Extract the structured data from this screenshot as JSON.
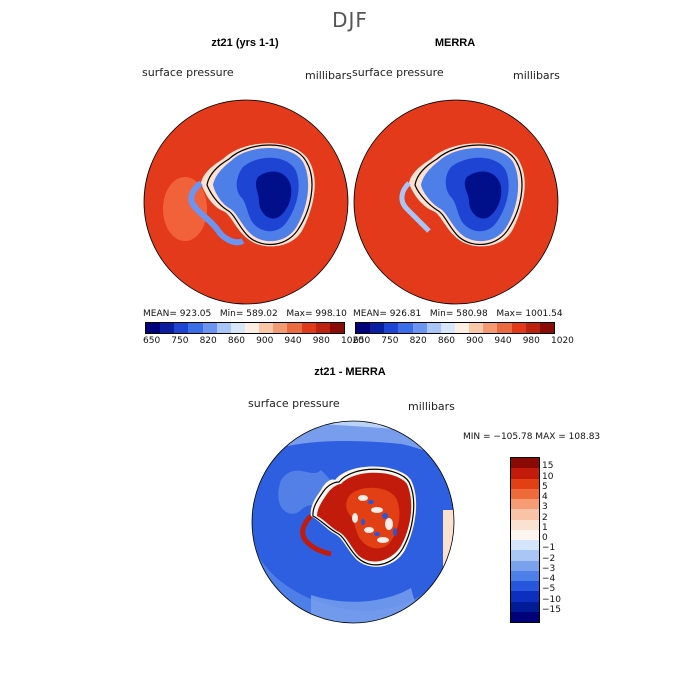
{
  "page": {
    "season": "DJF"
  },
  "colors": {
    "abs_levels": [
      "#00007a",
      "#0a1fa0",
      "#1e44d4",
      "#3b6de8",
      "#6b95f0",
      "#a8c5f5",
      "#d8e6fa",
      "#fdeee3",
      "#f7c7a8",
      "#f29a72",
      "#ea6a42",
      "#e03a1a",
      "#bd220f",
      "#8a0b05"
    ],
    "diff_levels": [
      "#8a0b05",
      "#c21b0c",
      "#e23f14",
      "#ef6a3a",
      "#f59c74",
      "#f8c3a6",
      "#fbe1d2",
      "#fdf6f0",
      "#d5e5fb",
      "#a9c6f4",
      "#7aa1ee",
      "#4e7ee8",
      "#2656dc",
      "#0c2fc0",
      "#001c96",
      "#00007a"
    ],
    "ocean_red": "#e33a1c",
    "ocean_blue": "#2d5fe0",
    "land_blue": "#1436c8",
    "land_deep": "#00108a"
  },
  "panels": {
    "left": {
      "title": "zt21 (yrs 1-1)",
      "variable": "surface pressure",
      "units": "millibars",
      "mean_label": "MEAN=",
      "mean": "923.05",
      "min_label": "Min=",
      "min": "589.02",
      "max_label": "Max=",
      "max": "998.10",
      "ticks": [
        "650",
        "750",
        "820",
        "860",
        "900",
        "940",
        "980",
        "1020"
      ]
    },
    "right": {
      "title": "MERRA",
      "variable": "surface pressure",
      "units": "millibars",
      "mean_label": "MEAN=",
      "mean": "926.81",
      "min_label": "Min=",
      "min": "580.98",
      "max_label": "Max=",
      "max": "1001.54",
      "ticks": [
        "650",
        "750",
        "820",
        "860",
        "900",
        "940",
        "980",
        "1020"
      ]
    },
    "diff": {
      "title": "zt21 - MERRA",
      "variable": "surface pressure",
      "units": "millibars",
      "minmax": "MIN = −105.78 MAX = 108.83",
      "ticks": [
        "15",
        "10",
        "5",
        "4",
        "3",
        "2",
        "1",
        "0",
        "−1",
        "−2",
        "−3",
        "−4",
        "−5",
        "−10",
        "−15"
      ]
    }
  }
}
